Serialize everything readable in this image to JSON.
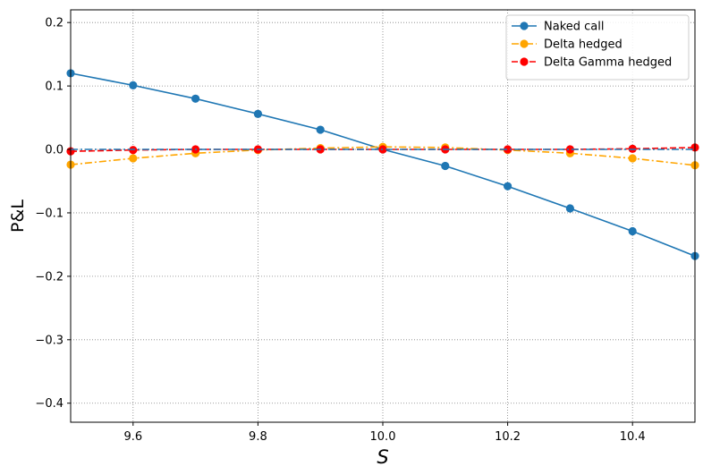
{
  "chart_data": {
    "type": "line",
    "xlabel": "S",
    "ylabel": "P&L",
    "xlim": [
      9.5,
      10.5
    ],
    "ylim": [
      -0.43,
      0.22
    ],
    "xticks": [
      9.6,
      9.8,
      10.0,
      10.2,
      10.4
    ],
    "xtick_labels": [
      "9.6",
      "9.8",
      "10.0",
      "10.2",
      "10.4"
    ],
    "yticks": [
      -0.4,
      -0.3,
      -0.2,
      -0.1,
      0.0,
      0.1,
      0.2
    ],
    "ytick_labels": [
      "−0.4",
      "−0.3",
      "−0.2",
      "−0.1",
      "0.0",
      "0.1",
      "0.2"
    ],
    "grid": true,
    "legend_position": "top-right",
    "series": [
      {
        "name": "Naked call",
        "color": "#1f77b4",
        "dash": "solid",
        "x": [
          9.5,
          9.6,
          9.7,
          9.8,
          9.9,
          10.0,
          10.1,
          10.2,
          10.3,
          10.4,
          10.5
        ],
        "y": [
          0.12,
          0.101,
          0.08,
          0.056,
          0.031,
          0.0,
          -0.026,
          -0.058,
          -0.093,
          -0.129,
          -0.168
        ]
      },
      {
        "name": "Delta hedged",
        "color": "#ffa500",
        "dash": "dashdot",
        "x": [
          9.5,
          9.6,
          9.7,
          9.8,
          9.9,
          10.0,
          10.1,
          10.2,
          10.3,
          10.4,
          10.5
        ],
        "y": [
          -0.024,
          -0.014,
          -0.006,
          -0.001,
          0.002,
          0.004,
          0.003,
          -0.001,
          -0.006,
          -0.014,
          -0.025
        ]
      },
      {
        "name": "Delta Gamma hedged",
        "color": "#ff0000",
        "dash": "dashed",
        "x": [
          9.5,
          9.6,
          9.7,
          9.8,
          9.9,
          10.0,
          10.1,
          10.2,
          10.3,
          10.4,
          10.5
        ],
        "y": [
          -0.003,
          -0.001,
          0.0,
          0.0,
          0.0,
          0.0,
          0.0,
          0.0,
          0.0,
          0.001,
          0.003
        ]
      },
      {
        "color": "#1f77b4",
        "dash": "dashdot",
        "marker": "none",
        "x": [
          9.5,
          10.5
        ],
        "y": [
          0.0,
          0.0
        ]
      }
    ]
  }
}
